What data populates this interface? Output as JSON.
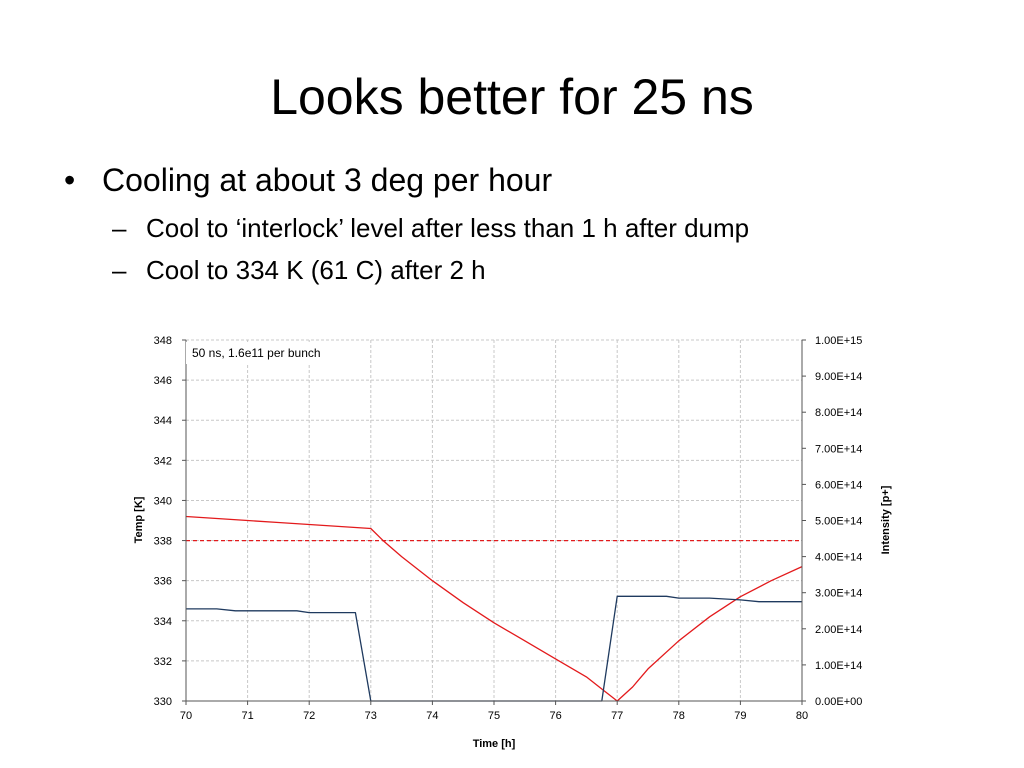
{
  "slide": {
    "title": "Looks better for 25 ns",
    "bullets": [
      {
        "text": "Cooling at about 3 deg per hour",
        "sub": [
          "Cool to ‘interlock’ level after less than 1 h after dump",
          "Cool to 334 K (61 C) after 2 h"
        ]
      }
    ],
    "bullet_glyph": "•",
    "sub_glyph": "–"
  },
  "chart_data": {
    "type": "line",
    "annotation": "50 ns, 1.6e11 per bunch",
    "xlabel": "Time [h]",
    "ylabel": "Temp [K]",
    "y2label": "Intensity [p+]",
    "xlim": [
      70,
      80
    ],
    "ylim": [
      330,
      348
    ],
    "y2lim": [
      0,
      1000000000000000.0
    ],
    "x_ticks": [
      70,
      71,
      72,
      73,
      74,
      75,
      76,
      77,
      78,
      79,
      80
    ],
    "y_ticks": [
      330,
      332,
      334,
      336,
      338,
      340,
      342,
      344,
      346,
      348
    ],
    "y2_ticks": [
      "0.00E+00",
      "1.00E+14",
      "2.00E+14",
      "3.00E+14",
      "4.00E+14",
      "5.00E+14",
      "6.00E+14",
      "7.00E+14",
      "8.00E+14",
      "9.00E+14",
      "1.00E+15"
    ],
    "grid": true,
    "series": [
      {
        "axis": "left",
        "color": "#e31a1c",
        "x": [
          70,
          70.5,
          71,
          71.5,
          72,
          72.5,
          73,
          73.2,
          73.5,
          74,
          74.5,
          75,
          75.5,
          76,
          76.5,
          76.75,
          77,
          77.25,
          77.5,
          78,
          78.5,
          79,
          79.5,
          80
        ],
        "y": [
          339.2,
          339.1,
          339.0,
          338.9,
          338.8,
          338.7,
          338.6,
          338.0,
          337.2,
          336.0,
          334.9,
          333.9,
          333.0,
          332.1,
          331.2,
          330.6,
          330.0,
          330.7,
          331.6,
          333.0,
          334.2,
          335.2,
          336.0,
          336.7
        ]
      },
      {
        "axis": "right",
        "color": "#1f3a5f",
        "x": [
          70,
          70.5,
          70.8,
          71.8,
          72.0,
          72.75,
          73.0,
          76.75,
          77.0,
          77.8,
          78.0,
          78.5,
          79.0,
          79.3,
          80.0
        ],
        "y": [
          255000000000000.0,
          255000000000000.0,
          250000000000000.0,
          250000000000000.0,
          245000000000000.0,
          245000000000000.0,
          0,
          0,
          290000000000000.0,
          290000000000000.0,
          285000000000000.0,
          285000000000000.0,
          280000000000000.0,
          275000000000000.0,
          275000000000000.0
        ]
      },
      {
        "axis": "left",
        "color": "#e31a1c",
        "dashed": true,
        "x": [
          70,
          80
        ],
        "y": [
          338,
          338
        ]
      }
    ]
  }
}
